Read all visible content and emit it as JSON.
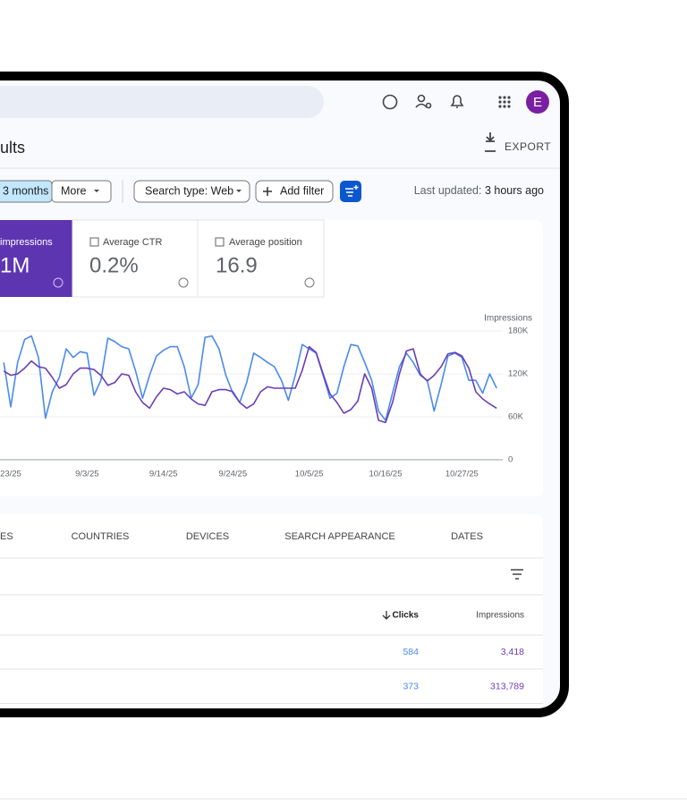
{
  "header": {
    "avatar": "E",
    "title": "ults",
    "export": "EXPORT"
  },
  "filters": {
    "date_range": "3 months",
    "more": "More",
    "search_type": "Search type: Web",
    "add_filter": "Add filter",
    "last_updated_label": "Last updated:",
    "last_updated_value": "3 hours ago"
  },
  "cards": [
    {
      "label": "impressions",
      "value": "1M"
    },
    {
      "label": "Average CTR",
      "value": "0.2%"
    },
    {
      "label": "Average position",
      "value": "16.9"
    }
  ],
  "chart_data": {
    "type": "line",
    "y_label": "Impressions",
    "ylim": [
      0,
      180000
    ],
    "yticks": [
      {
        "value": 0,
        "label": "0"
      },
      {
        "value": 60000,
        "label": "60K"
      },
      {
        "value": 120000,
        "label": "120K"
      },
      {
        "value": 180000,
        "label": "180K"
      }
    ],
    "grid": true,
    "categories": [
      null,
      "23/25",
      null,
      null,
      null,
      null,
      null,
      null,
      null,
      null,
      null,
      null,
      "9/3/25",
      null,
      null,
      null,
      null,
      null,
      null,
      null,
      null,
      null,
      null,
      "9/14/25",
      null,
      null,
      null,
      null,
      null,
      null,
      null,
      null,
      null,
      "9/24/25",
      null,
      null,
      null,
      null,
      null,
      null,
      null,
      null,
      null,
      null,
      "10/5/25",
      null,
      null,
      null,
      null,
      null,
      null,
      null,
      null,
      null,
      null,
      "10/16/25",
      null,
      null,
      null,
      null,
      null,
      null,
      null,
      null,
      null,
      null,
      "10/27/25",
      null,
      null,
      null,
      null,
      null
    ],
    "series": [
      {
        "color": "#4a8af0",
        "values": [
          136000,
          74000,
          136000,
          168000,
          173000,
          143000,
          58000,
          95000,
          115000,
          155000,
          143000,
          151000,
          149000,
          90000,
          111000,
          170000,
          165000,
          158000,
          155000,
          124000,
          86000,
          118000,
          145000,
          153000,
          158000,
          158000,
          130000,
          86000,
          105000,
          171000,
          173000,
          155000,
          118000,
          93000,
          80000,
          108000,
          149000,
          143000,
          136000,
          130000,
          111000,
          83000,
          118000,
          161000,
          155000,
          149000,
          118000,
          86000,
          93000,
          130000,
          161000,
          159000,
          136000,
          111000,
          68000,
          55000,
          93000,
          130000,
          149000,
          136000,
          118000,
          111000,
          68000,
          105000,
          145000,
          149000,
          143000,
          111000,
          111000,
          93000,
          120000,
          100000
        ]
      },
      {
        "color": "#6a3db8",
        "values": [
          124000,
          118000,
          120000,
          128000,
          138000,
          130000,
          128000,
          115000,
          100000,
          105000,
          120000,
          128000,
          128000,
          126000,
          118000,
          104000,
          108000,
          120000,
          118000,
          95000,
          80000,
          72000,
          88000,
          100000,
          98000,
          92000,
          95000,
          85000,
          78000,
          76000,
          95000,
          98000,
          98000,
          95000,
          80000,
          72000,
          78000,
          95000,
          102000,
          100000,
          100000,
          100000,
          100000,
          125000,
          158000,
          150000,
          120000,
          92000,
          80000,
          65000,
          70000,
          82000,
          120000,
          100000,
          55000,
          52000,
          80000,
          120000,
          152000,
          155000,
          120000,
          110000,
          118000,
          130000,
          148000,
          150000,
          145000,
          128000,
          95000,
          85000,
          78000,
          72000
        ]
      }
    ]
  },
  "tabs": [
    "ES",
    "COUNTRIES",
    "DEVICES",
    "SEARCH APPEARANCE",
    "DATES"
  ],
  "table": {
    "columns": [
      "Clicks",
      "Impressions"
    ],
    "rows": [
      [
        "584",
        "3,418"
      ],
      [
        "373",
        "313,789"
      ]
    ]
  }
}
